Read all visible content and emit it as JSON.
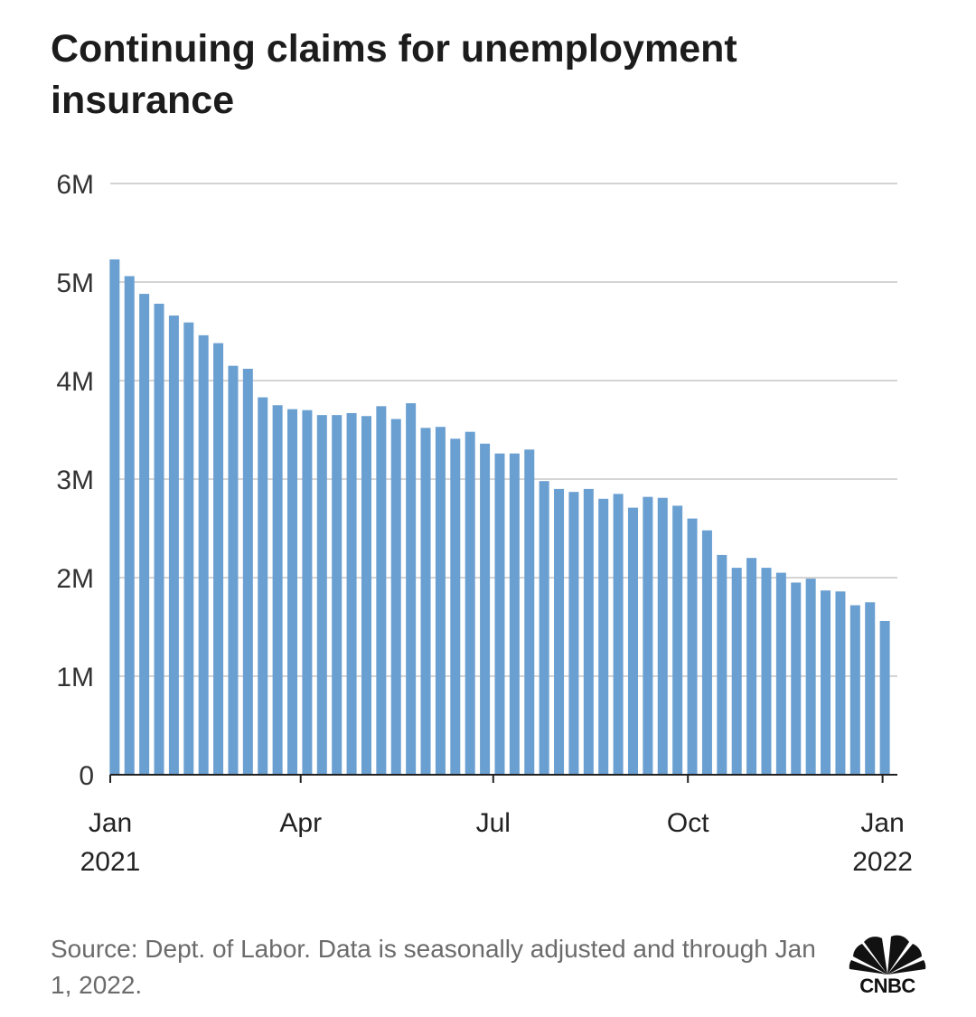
{
  "title": "Continuing claims for unemployment insurance",
  "source": "Source: Dept. of Labor. Data is seasonally adjusted and through Jan 1, 2022.",
  "logo_text": "CNBC",
  "colors": {
    "bar": "#6a9fd1",
    "grid": "#d4d4d4",
    "axis": "#222222"
  },
  "chart_data": {
    "type": "bar",
    "title": "Continuing claims for unemployment insurance",
    "xlabel": "",
    "ylabel": "",
    "ylim": [
      0,
      6000000
    ],
    "grid": true,
    "y_ticks": [
      {
        "value": 0,
        "label": "0"
      },
      {
        "value": 1000000,
        "label": "1M"
      },
      {
        "value": 2000000,
        "label": "2M"
      },
      {
        "value": 3000000,
        "label": "3M"
      },
      {
        "value": 4000000,
        "label": "4M"
      },
      {
        "value": 5000000,
        "label": "5M"
      },
      {
        "value": 6000000,
        "label": "6M"
      }
    ],
    "x_ticks": [
      {
        "date": "2021-01-01",
        "label": "Jan",
        "label2": "2021"
      },
      {
        "date": "2021-04-01",
        "label": "Apr",
        "label2": ""
      },
      {
        "date": "2021-07-01",
        "label": "Jul",
        "label2": ""
      },
      {
        "date": "2021-10-01",
        "label": "Oct",
        "label2": ""
      },
      {
        "date": "2022-01-01",
        "label": "Jan",
        "label2": "2022"
      }
    ],
    "xlim": [
      "2021-01-01",
      "2022-01-08"
    ],
    "dates": [
      "2021-01-02",
      "2021-01-09",
      "2021-01-16",
      "2021-01-23",
      "2021-01-30",
      "2021-02-06",
      "2021-02-13",
      "2021-02-20",
      "2021-02-27",
      "2021-03-06",
      "2021-03-13",
      "2021-03-20",
      "2021-03-27",
      "2021-04-03",
      "2021-04-10",
      "2021-04-17",
      "2021-04-24",
      "2021-05-01",
      "2021-05-08",
      "2021-05-15",
      "2021-05-22",
      "2021-05-29",
      "2021-06-05",
      "2021-06-12",
      "2021-06-19",
      "2021-06-26",
      "2021-07-03",
      "2021-07-10",
      "2021-07-17",
      "2021-07-24",
      "2021-07-31",
      "2021-08-07",
      "2021-08-14",
      "2021-08-21",
      "2021-08-28",
      "2021-09-04",
      "2021-09-11",
      "2021-09-18",
      "2021-09-25",
      "2021-10-02",
      "2021-10-09",
      "2021-10-16",
      "2021-10-23",
      "2021-10-30",
      "2021-11-06",
      "2021-11-13",
      "2021-11-20",
      "2021-11-27",
      "2021-12-04",
      "2021-12-11",
      "2021-12-18",
      "2021-12-25",
      "2022-01-01"
    ],
    "values": [
      5230000,
      5060000,
      4880000,
      4780000,
      4660000,
      4590000,
      4460000,
      4380000,
      4150000,
      4120000,
      3830000,
      3750000,
      3710000,
      3700000,
      3650000,
      3650000,
      3670000,
      3640000,
      3740000,
      3610000,
      3770000,
      3520000,
      3530000,
      3410000,
      3480000,
      3360000,
      3260000,
      3260000,
      3300000,
      2980000,
      2900000,
      2870000,
      2900000,
      2800000,
      2850000,
      2710000,
      2820000,
      2810000,
      2730000,
      2600000,
      2480000,
      2230000,
      2100000,
      2200000,
      2100000,
      2050000,
      1950000,
      1990000,
      1870000,
      1860000,
      1720000,
      1750000,
      1560000
    ]
  }
}
